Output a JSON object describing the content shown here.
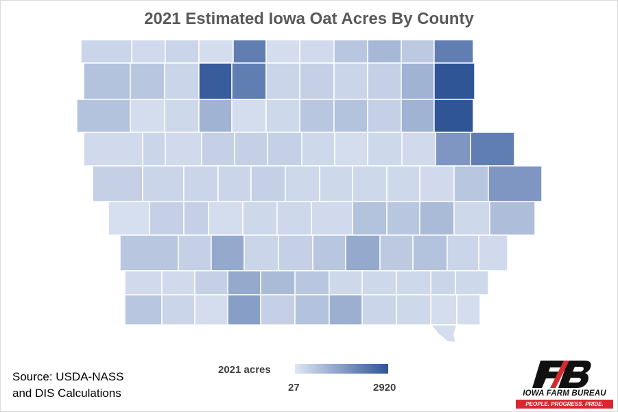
{
  "title": "2021 Estimated Iowa Oat Acres By County",
  "source_lines": [
    "Source: USDA-NASS",
    "and DIS Calculations"
  ],
  "legend": {
    "title": "2021 acres",
    "min_label": "27",
    "max_label": "2920",
    "color_min": "#dfe6f4",
    "color_max": "#2f5597"
  },
  "logo": {
    "name": "IOWA FARM BUREAU",
    "tagline": "PEOPLE. PROGRESS. PRIDE.",
    "accent": "#d7282f"
  },
  "map_colors": {
    "state_outline": "#ffffff",
    "fill_scale": [
      "#dfe6f4",
      "#2f5597"
    ]
  }
}
